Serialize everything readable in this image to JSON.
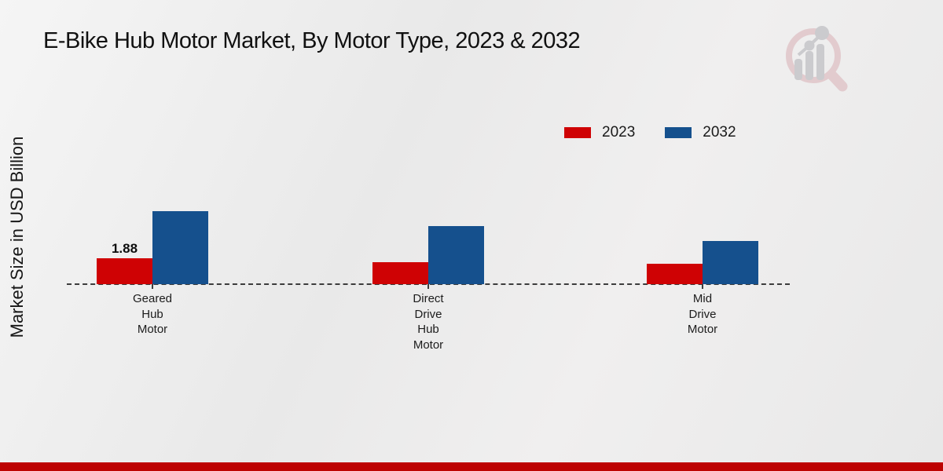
{
  "title": "E-Bike Hub Motor Market, By Motor Type, 2023 & 2032",
  "y_axis_label": "Market Size in USD Billion",
  "legend": {
    "items": [
      {
        "label": "2023",
        "color": "#cf0204"
      },
      {
        "label": "2032",
        "color": "#15508d"
      }
    ]
  },
  "colors": {
    "series_2023": "#cf0204",
    "series_2032": "#15508d",
    "bottom_stripe": "#bd0202",
    "baseline": "#3c3c3c"
  },
  "watermark_icon": "market-research-future-logo",
  "chart_data": {
    "type": "bar",
    "categories": [
      "Geared Hub Motor",
      "Direct Drive Hub Motor",
      "Mid Drive Motor"
    ],
    "category_label_lines": [
      [
        "Geared",
        "Hub",
        "Motor"
      ],
      [
        "Direct",
        "Drive",
        "Hub",
        "Motor"
      ],
      [
        "Mid",
        "Drive",
        "Motor"
      ]
    ],
    "series": [
      {
        "name": "2023",
        "color": "#cf0204",
        "values": [
          1.88,
          1.6,
          1.48
        ]
      },
      {
        "name": "2032",
        "color": "#15508d",
        "values": [
          5.3,
          4.2,
          3.13
        ]
      }
    ],
    "data_labels": [
      {
        "series": "2023",
        "category": "Geared Hub Motor",
        "text": "1.88"
      }
    ],
    "title": "E-Bike Hub Motor Market, By Motor Type, 2023 & 2032",
    "xlabel": "",
    "ylabel": "Market Size in USD Billion",
    "ylim": [
      0,
      6
    ],
    "grid": false,
    "axis_line": "dashed-baseline-only",
    "legend_position": "top-right"
  }
}
